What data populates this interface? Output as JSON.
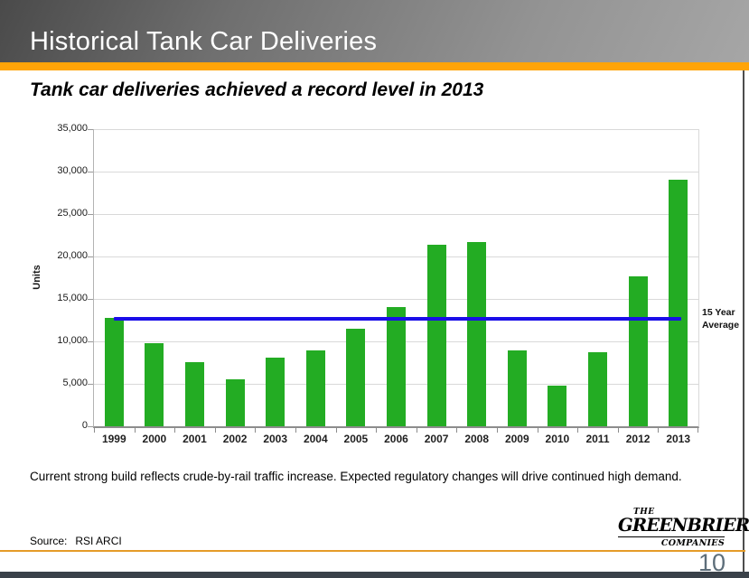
{
  "slide": {
    "title": "Historical Tank Car Deliveries",
    "subtitle": "Tank car deliveries achieved a record level in 2013",
    "page_number": "10"
  },
  "chart_data": {
    "type": "bar",
    "title": "",
    "ylabel": "Units",
    "xlabel": "",
    "ylim": [
      0,
      35000
    ],
    "ytick_step": 5000,
    "grid": true,
    "categories": [
      "1999",
      "2000",
      "2001",
      "2002",
      "2003",
      "2004",
      "2005",
      "2006",
      "2007",
      "2008",
      "2009",
      "2010",
      "2011",
      "2012",
      "2013"
    ],
    "series": [
      {
        "name": "Tank Car Deliveries",
        "type": "bar",
        "color": "#23ac23",
        "values": [
          12800,
          9800,
          7600,
          5500,
          8100,
          8900,
          11500,
          14000,
          21400,
          21700,
          8900,
          4800,
          8700,
          17700,
          29000
        ]
      },
      {
        "name": "15 Year Average",
        "type": "line",
        "color": "#1a0de8",
        "value": 12700
      }
    ],
    "annotation": "15 Year\nAverage",
    "legend_position": "right-of-plot"
  },
  "footer": {
    "note": "Current strong build reflects crude-by-rail traffic increase. Expected regulatory changes will drive continued high demand.",
    "source_label": "Source:",
    "source_value": "RSI ARCI"
  },
  "logo": {
    "line1": "THE",
    "line2": "GREENBRIER",
    "line3": "COMPANIES"
  },
  "colors": {
    "accent_orange": "#FFA408",
    "footer_rule_orange": "#E59B28",
    "bar_green": "#23ac23",
    "average_line_blue": "#1a0de8",
    "header_gradient_dark": "#4a4a4a",
    "header_gradient_light": "#a6a6a6",
    "page_number_gray_blue": "#5d6e7a",
    "bottom_bar_dark": "#3a4149"
  }
}
